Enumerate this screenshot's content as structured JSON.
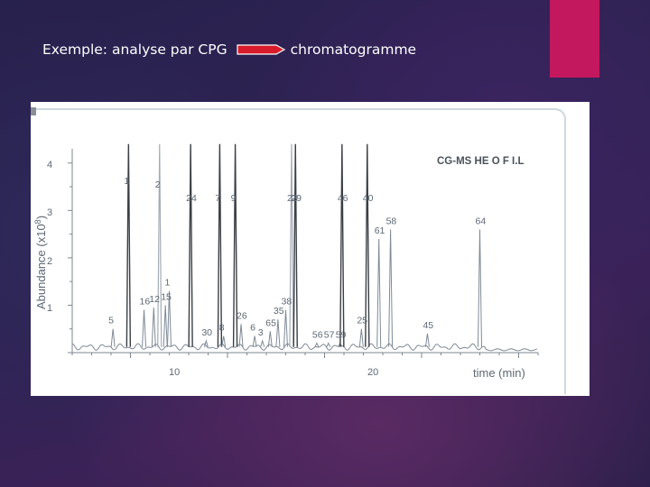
{
  "slide": {
    "title_left": "Exemple: analyse par CPG",
    "title_right": "chromatogramme",
    "accent_color": "#c4185e",
    "arrow_color": "#d81b2a"
  },
  "chart_data": {
    "type": "line",
    "legend": "CG-MS HE O F I.L",
    "xlabel": "time (min)",
    "ylabel_main": "Abundance (x10",
    "ylabel_exp": "8",
    "ylabel_close": ")",
    "x_ticks": [
      "10",
      "20"
    ],
    "y_ticks": [
      "1",
      "2",
      "3",
      "4"
    ],
    "xlim": [
      2,
      26
    ],
    "ylim": [
      0,
      4.3
    ],
    "peaks": [
      {
        "label": "5",
        "x": 4.1,
        "y": 0.5
      },
      {
        "label": "1",
        "x": 4.9,
        "y": 4.4
      },
      {
        "label": "2",
        "x": 6.5,
        "y": 4.4
      },
      {
        "label": "16",
        "x": 5.7,
        "y": 0.9
      },
      {
        "label": "12",
        "x": 6.2,
        "y": 0.95
      },
      {
        "label": "15",
        "x": 6.8,
        "y": 1.0
      },
      {
        "label": "1",
        "x": 7.0,
        "y": 1.3
      },
      {
        "label": "24",
        "x": 8.1,
        "y": 4.4
      },
      {
        "label": "30",
        "x": 8.9,
        "y": 0.25
      },
      {
        "label": "7",
        "x": 9.6,
        "y": 4.4
      },
      {
        "label": "8",
        "x": 9.8,
        "y": 0.35
      },
      {
        "label": "9",
        "x": 10.4,
        "y": 4.4
      },
      {
        "label": "26",
        "x": 10.7,
        "y": 0.6
      },
      {
        "label": "6",
        "x": 11.4,
        "y": 0.35
      },
      {
        "label": "3",
        "x": 11.8,
        "y": 0.25
      },
      {
        "label": "65",
        "x": 12.2,
        "y": 0.45
      },
      {
        "label": "35",
        "x": 12.6,
        "y": 0.7
      },
      {
        "label": "38",
        "x": 13.0,
        "y": 0.9
      },
      {
        "label": "23",
        "x": 13.3,
        "y": 4.4
      },
      {
        "label": "29",
        "x": 13.5,
        "y": 4.4
      },
      {
        "label": "56",
        "x": 14.6,
        "y": 0.2
      },
      {
        "label": "57",
        "x": 15.2,
        "y": 0.2
      },
      {
        "label": "59",
        "x": 15.8,
        "y": 0.2
      },
      {
        "label": "46",
        "x": 15.9,
        "y": 4.4
      },
      {
        "label": "25",
        "x": 16.9,
        "y": 0.5
      },
      {
        "label": "40",
        "x": 17.2,
        "y": 4.4
      },
      {
        "label": "61",
        "x": 17.8,
        "y": 2.4
      },
      {
        "label": "58",
        "x": 18.4,
        "y": 2.6
      },
      {
        "label": "45",
        "x": 20.3,
        "y": 0.4
      },
      {
        "label": "64",
        "x": 23.0,
        "y": 2.6
      }
    ],
    "colors": {
      "trace": "#7f8a96",
      "axis": "#7d8791",
      "frame": "#cfd8df"
    }
  }
}
